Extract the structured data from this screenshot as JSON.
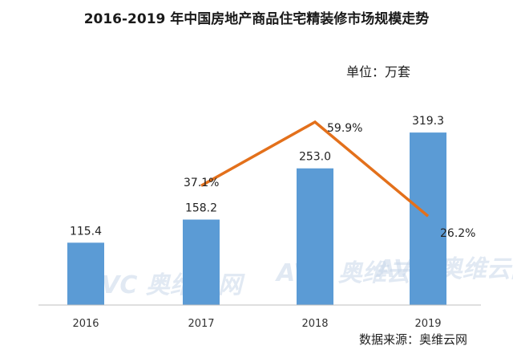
{
  "title": "2016-2019 年中国房地产商品住宅精装修市场规模走势",
  "unit": "单位：万套",
  "source": "数据来源：奥维云网",
  "watermark": "AVC 奥维云网",
  "chart_data": {
    "type": "bar",
    "categories": [
      "2016",
      "2017",
      "2018",
      "2019"
    ],
    "series": [
      {
        "values": [
          115.4,
          158.2,
          253.0,
          319.3
        ],
        "color": "#5b9bd5"
      },
      {
        "type": "line",
        "values": [
          null,
          37.1,
          59.9,
          26.2
        ],
        "color": "#e3701b"
      }
    ],
    "value_labels": [
      "115.4",
      "158.2",
      "253.0",
      "319.3"
    ],
    "growth_labels": [
      "",
      "37.1%",
      "59.9%",
      "26.2%"
    ],
    "legend": "none",
    "grid": false
  }
}
